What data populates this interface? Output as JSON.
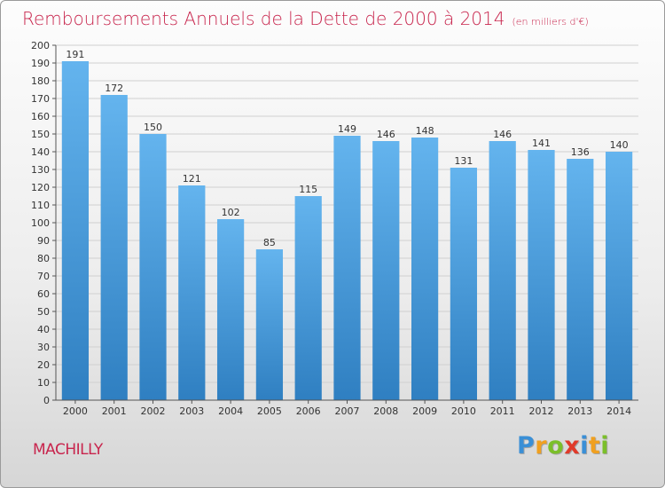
{
  "header": {
    "title": "Remboursements Annuels de la Dette de 2000 à 2014",
    "unit": "(en milliers d'€)"
  },
  "footer": {
    "town": "MACHILLY",
    "logo_letters": [
      {
        "ch": "P",
        "color": "#3a8fd6"
      },
      {
        "ch": "r",
        "color": "#f0a020"
      },
      {
        "ch": "o",
        "color": "#7bbf2a"
      },
      {
        "ch": "x",
        "color": "#e03a2a"
      },
      {
        "ch": "i",
        "color": "#3a8fd6"
      },
      {
        "ch": "t",
        "color": "#f0a020"
      },
      {
        "ch": "i",
        "color": "#7bbf2a"
      }
    ]
  },
  "colors": {
    "bar_light": "#64b4ee",
    "bar_dark": "#2f7fc1",
    "title": "#c8254d"
  },
  "chart_data": {
    "type": "bar",
    "title": "Remboursements Annuels de la Dette de 2000 à 2014",
    "xlabel": "",
    "ylabel": "",
    "unit": "en milliers d'€",
    "categories": [
      "2000",
      "2001",
      "2002",
      "2003",
      "2004",
      "2005",
      "2006",
      "2007",
      "2008",
      "2009",
      "2010",
      "2011",
      "2012",
      "2013",
      "2014"
    ],
    "values": [
      191,
      172,
      150,
      121,
      102,
      85,
      115,
      149,
      146,
      148,
      131,
      146,
      141,
      136,
      140
    ],
    "ylim": [
      0,
      200
    ],
    "ytick_step": 10,
    "grid": true
  }
}
